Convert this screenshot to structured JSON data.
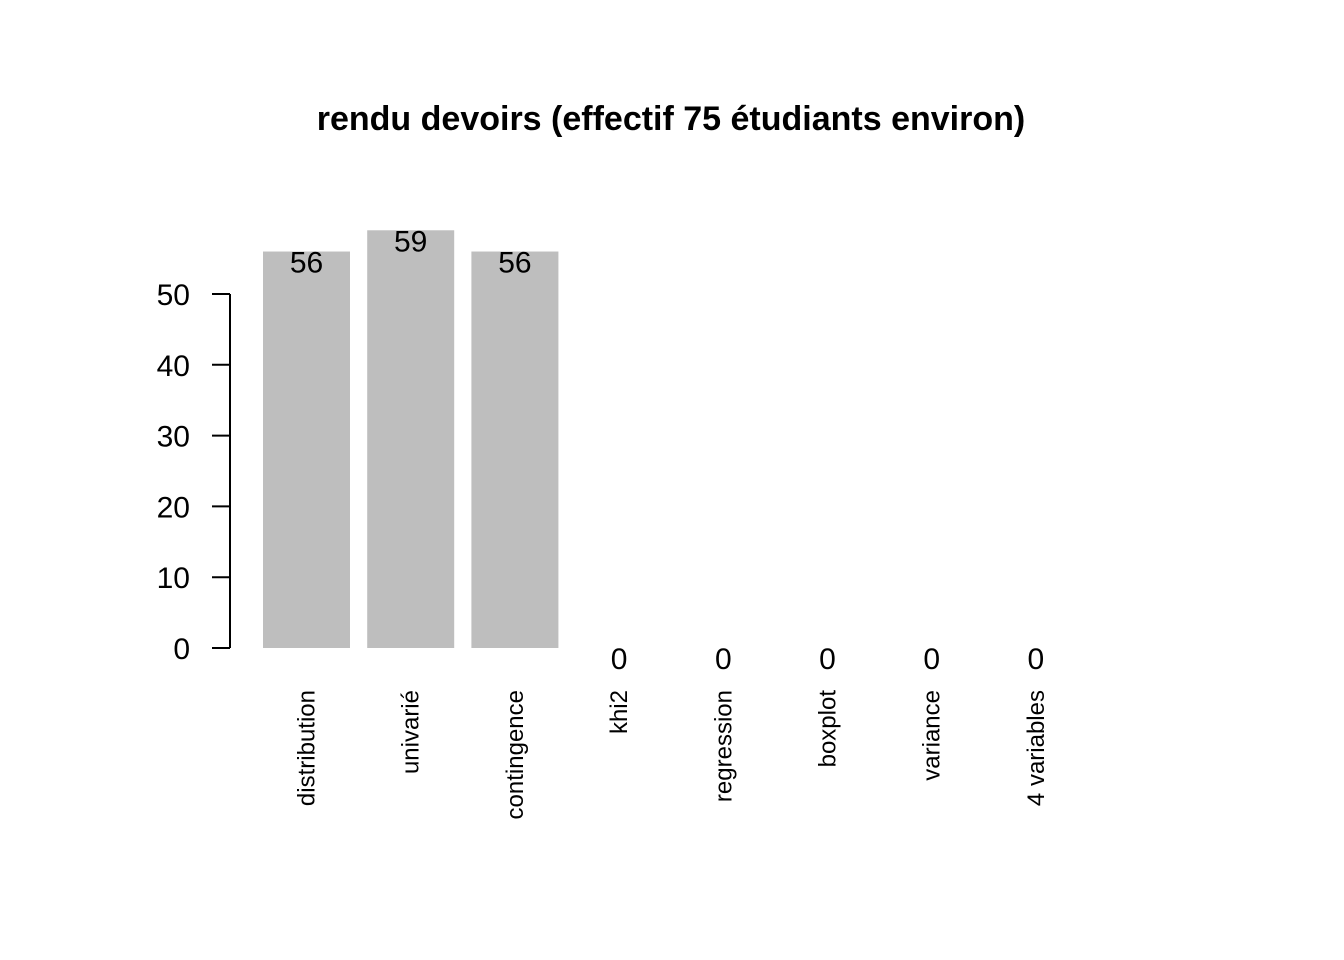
{
  "chart_data": {
    "type": "bar",
    "title": "rendu devoirs (effectif 75 étudiants environ)",
    "xlabel": "",
    "ylabel": "",
    "categories": [
      "distribution",
      "univarié",
      "contingence",
      "khi2",
      "regression",
      "boxplot",
      "variance",
      "4 variables"
    ],
    "values": [
      56,
      59,
      56,
      0,
      0,
      0,
      0,
      0
    ],
    "value_labels": [
      "56",
      "59",
      "56",
      "0",
      "0",
      "0",
      "0",
      "0"
    ],
    "yticks": [
      0,
      10,
      20,
      30,
      40,
      50
    ],
    "ytick_labels": [
      "0",
      "10",
      "20",
      "30",
      "40",
      "50"
    ],
    "ylim": [
      0,
      50
    ],
    "bar_color": "#bebebe",
    "grid": false,
    "legend": "none"
  }
}
